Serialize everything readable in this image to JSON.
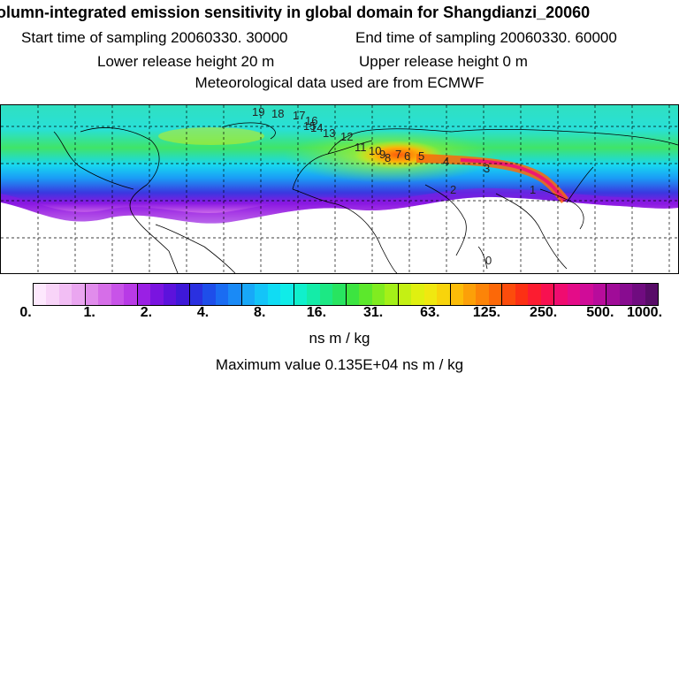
{
  "header": {
    "title": "olumn-integrated emission sensitivity in global domain for Shangdianzi_20060",
    "start_sampling": "Start time of sampling 20060330. 30000",
    "end_sampling": "End time of sampling 20060330. 60000",
    "lower_release": "Lower release height   20 m",
    "upper_release": "Upper release height    0 m",
    "met_data": "Meteorological data used are from ECMWF"
  },
  "map": {
    "contour_labels": [
      "19",
      "18",
      "17",
      "16",
      "15",
      "14",
      "13",
      "12",
      "11",
      "10",
      "9",
      "8",
      "7",
      "6",
      "5",
      "4",
      "3",
      "2",
      "1",
      "0"
    ]
  },
  "colorbar": {
    "colors": [
      "#fde8fd",
      "#f8d4f8",
      "#f2bef4",
      "#eaa6f0",
      "#e18cec",
      "#d66ee8",
      "#c853e8",
      "#b83ae6",
      "#9a20e4",
      "#7a14e0",
      "#5c12dc",
      "#3e18d8",
      "#2a30e0",
      "#1e4eea",
      "#1a6cf2",
      "#1a8af6",
      "#18a8f8",
      "#14c4f8",
      "#10dcf4",
      "#10ece8",
      "#10f0cc",
      "#14eca8",
      "#1ce884",
      "#28e460",
      "#3ce440",
      "#5ce82c",
      "#80ec20",
      "#a4f018",
      "#c4f014",
      "#e0f010",
      "#f0e810",
      "#f8d40c",
      "#fcbc08",
      "#fca008",
      "#fc8408",
      "#fc6808",
      "#fc4c0c",
      "#fc3014",
      "#fc1c30",
      "#f81050",
      "#f00c70",
      "#e40c88",
      "#d00c98",
      "#b80c9c",
      "#a00c98",
      "#880c90",
      "#700c80",
      "#580c68"
    ],
    "ticks": [
      "0.",
      "1.",
      "2.",
      "4.",
      "8.",
      "16.",
      "31.",
      "63.",
      "125.",
      "250.",
      "500.",
      "1000."
    ],
    "units": "ns m / kg"
  },
  "footer": {
    "max_value": "Maximum value  0.135E+04 ns m / kg"
  }
}
